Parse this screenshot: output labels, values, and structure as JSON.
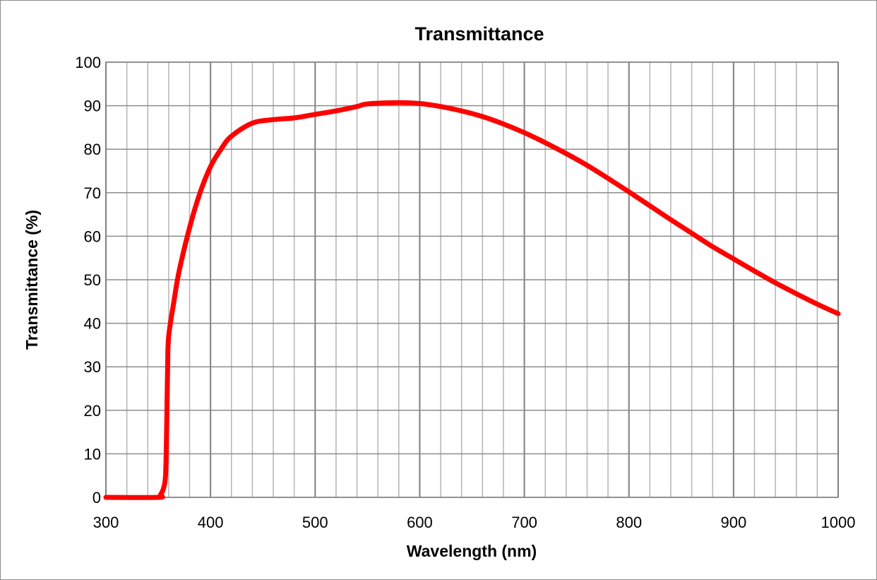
{
  "chart_data": {
    "type": "line",
    "title": "Transmittance",
    "xlabel": "Wavelength (nm)",
    "ylabel": "Transmittance (%)",
    "xlim": [
      300,
      1000
    ],
    "ylim": [
      0,
      100
    ],
    "x_ticks": [
      "300",
      "400",
      "500",
      "600",
      "700",
      "800",
      "900",
      "1000"
    ],
    "y_ticks": [
      "0",
      "10",
      "20",
      "30",
      "40",
      "50",
      "60",
      "70",
      "80",
      "90",
      "100"
    ],
    "grid": true,
    "legend": "none",
    "series": [
      {
        "color": "#ff0000",
        "x": [
          300,
          350,
          352,
          355,
          357,
          358,
          359,
          360,
          365,
          370,
          380,
          390,
          400,
          410,
          420,
          440,
          460,
          480,
          500,
          520,
          540,
          550,
          580,
          600,
          620,
          640,
          660,
          680,
          700,
          720,
          740,
          760,
          780,
          800,
          820,
          840,
          860,
          880,
          900,
          920,
          940,
          960,
          980,
          1000
        ],
        "y": [
          0,
          0,
          0.5,
          2,
          5,
          15,
          30,
          37,
          45,
          52,
          62,
          70,
          76,
          80,
          83,
          86,
          86.8,
          87.2,
          88,
          88.8,
          89.8,
          90.4,
          90.7,
          90.5,
          89.8,
          88.8,
          87.5,
          85.8,
          83.8,
          81.5,
          79,
          76.3,
          73.3,
          70.2,
          67,
          63.8,
          60.7,
          57.6,
          54.8,
          52,
          49.3,
          46.8,
          44.4,
          42.2
        ]
      }
    ]
  }
}
